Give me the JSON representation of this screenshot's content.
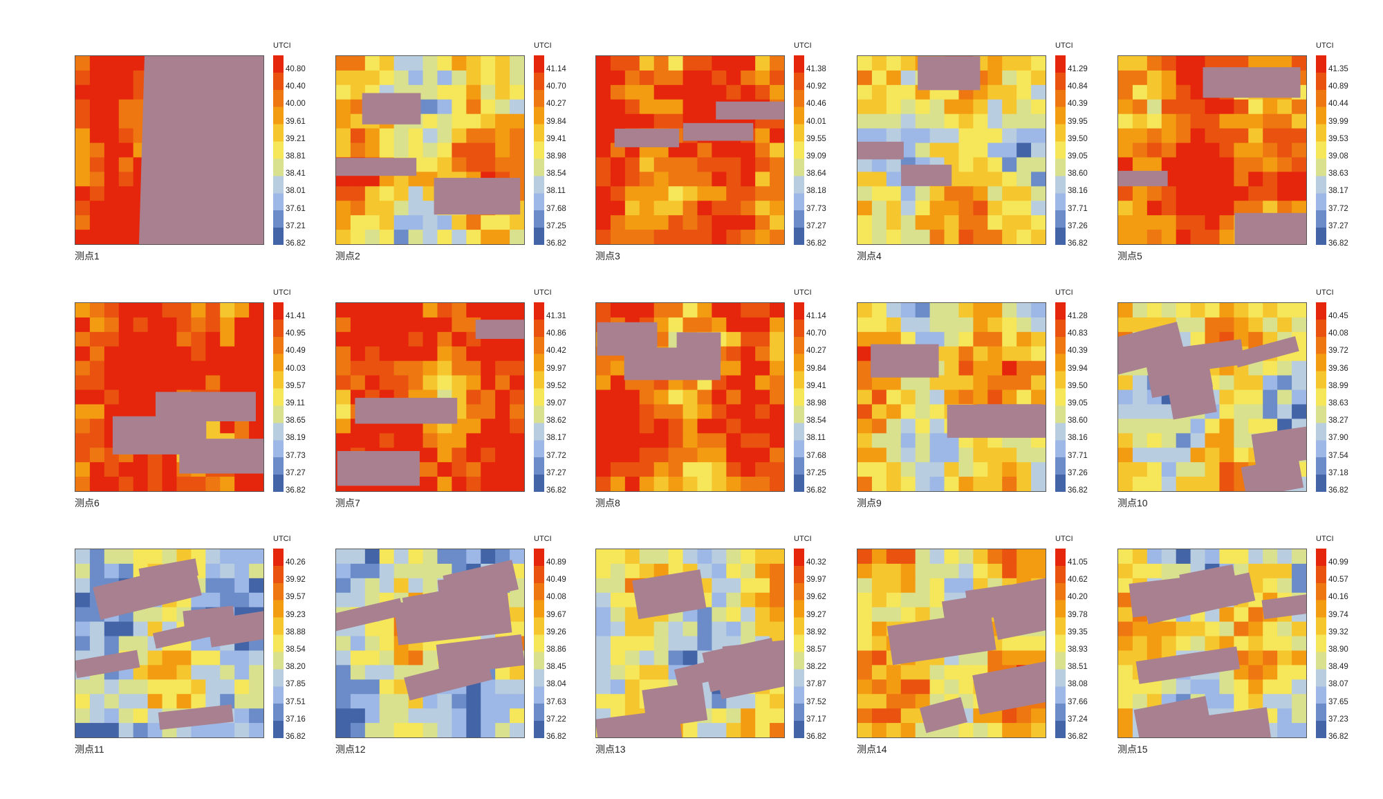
{
  "legend_title": "UTCI",
  "colors": [
    "#4464a8",
    "#6b8cc8",
    "#9db8e6",
    "#b9cde0",
    "#d9e08e",
    "#f6e65a",
    "#f6c62f",
    "#f39c12",
    "#ee7711",
    "#ea5210",
    "#e5260c"
  ],
  "building_color": "#a8808f",
  "chart_data": {
    "type": "heatmap",
    "title": "",
    "panels": [
      {
        "label": "测点1",
        "ticks": [
          "40.80",
          "40.40",
          "40.00",
          "39.61",
          "39.21",
          "38.81",
          "38.41",
          "38.01",
          "37.61",
          "37.21",
          "36.82"
        ]
      },
      {
        "label": "测点2",
        "ticks": [
          "41.14",
          "40.70",
          "40.27",
          "39.84",
          "39.41",
          "38.98",
          "38.54",
          "38.11",
          "37.68",
          "37.25",
          "36.82"
        ]
      },
      {
        "label": "测点3",
        "ticks": [
          "41.38",
          "40.92",
          "40.46",
          "40.01",
          "39.55",
          "39.09",
          "38.64",
          "38.18",
          "37.73",
          "37.27",
          "36.82"
        ]
      },
      {
        "label": "测点4",
        "ticks": [
          "41.29",
          "40.84",
          "40.39",
          "39.95",
          "39.50",
          "39.05",
          "38.60",
          "38.16",
          "37.71",
          "37.26",
          "36.82"
        ]
      },
      {
        "label": "测点5",
        "ticks": [
          "41.35",
          "40.89",
          "40.44",
          "39.99",
          "39.53",
          "39.08",
          "38.63",
          "38.17",
          "37.72",
          "37.27",
          "36.82"
        ]
      },
      {
        "label": "测点6",
        "ticks": [
          "41.41",
          "40.95",
          "40.49",
          "40.03",
          "39.57",
          "39.11",
          "38.65",
          "38.19",
          "37.73",
          "37.27",
          "36.82"
        ]
      },
      {
        "label": "测点7",
        "ticks": [
          "41.31",
          "40.86",
          "40.42",
          "39.97",
          "39.52",
          "39.07",
          "38.62",
          "38.17",
          "37.72",
          "37.27",
          "36.82"
        ]
      },
      {
        "label": "测点8",
        "ticks": [
          "41.14",
          "40.70",
          "40.27",
          "39.84",
          "39.41",
          "38.98",
          "38.54",
          "38.11",
          "37.68",
          "37.25",
          "36.82"
        ]
      },
      {
        "label": "测点9",
        "ticks": [
          "41.28",
          "40.83",
          "40.39",
          "39.94",
          "39.50",
          "39.05",
          "38.60",
          "38.16",
          "37.71",
          "37.26",
          "36.82"
        ]
      },
      {
        "label": "测点10",
        "ticks": [
          "40.45",
          "40.08",
          "39.72",
          "39.36",
          "38.99",
          "38.63",
          "38.27",
          "37.90",
          "37.54",
          "37.18",
          "36.82"
        ]
      },
      {
        "label": "测点11",
        "ticks": [
          "40.26",
          "39.92",
          "39.57",
          "39.23",
          "38.88",
          "38.54",
          "38.20",
          "37.85",
          "37.51",
          "37.16",
          "36.82"
        ]
      },
      {
        "label": "测点12",
        "ticks": [
          "40.89",
          "40.49",
          "40.08",
          "39.67",
          "39.26",
          "38.86",
          "38.45",
          "38.04",
          "37.63",
          "37.22",
          "36.82"
        ]
      },
      {
        "label": "测点13",
        "ticks": [
          "40.32",
          "39.97",
          "39.62",
          "39.27",
          "38.92",
          "38.57",
          "38.22",
          "37.87",
          "37.52",
          "37.17",
          "36.82"
        ]
      },
      {
        "label": "测点14",
        "ticks": [
          "41.05",
          "40.62",
          "40.20",
          "39.78",
          "39.35",
          "38.93",
          "38.51",
          "38.08",
          "37.66",
          "37.24",
          "36.82"
        ]
      },
      {
        "label": "测点15",
        "ticks": [
          "40.99",
          "40.57",
          "40.16",
          "39.74",
          "39.32",
          "38.90",
          "38.49",
          "38.07",
          "37.65",
          "37.23",
          "36.82"
        ]
      }
    ]
  }
}
